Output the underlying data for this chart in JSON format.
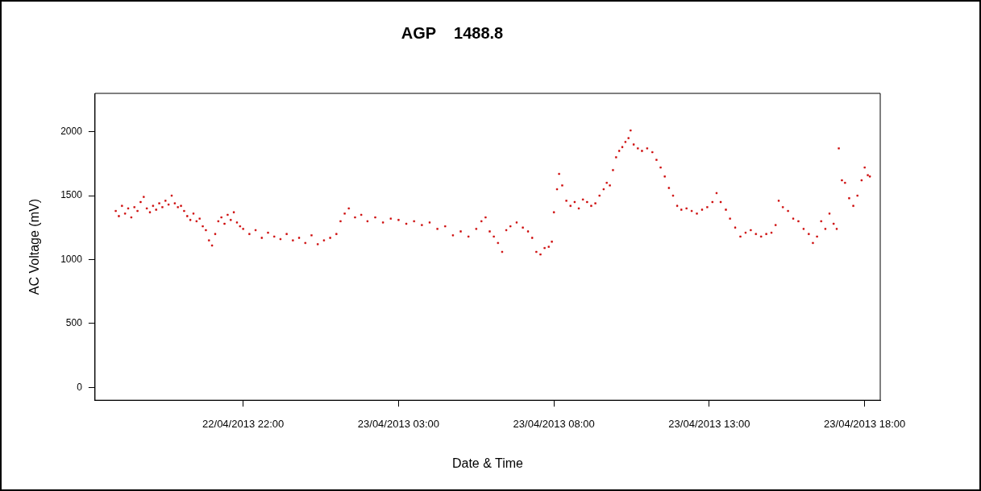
{
  "chart_data": {
    "type": "scatter",
    "title": "AGP    1488.8",
    "xlabel": "Date & Time",
    "ylabel": "AC Voltage (mV)",
    "xlim": [
      "2013-04-22T17:14",
      "2013-04-23T18:30"
    ],
    "xticks": [
      {
        "value": "2013-04-22T22:00",
        "label": "22/04/2013 22:00"
      },
      {
        "value": "2013-04-23T03:00",
        "label": "23/04/2013 03:00"
      },
      {
        "value": "2013-04-23T08:00",
        "label": "23/04/2013 08:00"
      },
      {
        "value": "2013-04-23T13:00",
        "label": "23/04/2013 13:00"
      },
      {
        "value": "2013-04-23T18:00",
        "label": "23/04/2013 18:00"
      }
    ],
    "ylim": [
      -100,
      2300
    ],
    "yticks": [
      0,
      500,
      1000,
      1500,
      2000
    ],
    "grid": false,
    "legend": false,
    "marker": "square",
    "series": [
      {
        "color": "#cc0000",
        "x": [
          "2013-04-22T17:54",
          "2013-04-22T18:00",
          "2013-04-22T18:06",
          "2013-04-22T18:12",
          "2013-04-22T18:18",
          "2013-04-22T18:24",
          "2013-04-22T18:30",
          "2013-04-22T18:36",
          "2013-04-22T18:42",
          "2013-04-22T18:48",
          "2013-04-22T18:54",
          "2013-04-22T19:00",
          "2013-04-22T19:06",
          "2013-04-22T19:12",
          "2013-04-22T19:18",
          "2013-04-22T19:24",
          "2013-04-22T19:30",
          "2013-04-22T19:36",
          "2013-04-22T19:42",
          "2013-04-22T19:48",
          "2013-04-22T19:54",
          "2013-04-22T20:00",
          "2013-04-22T20:06",
          "2013-04-22T20:12",
          "2013-04-22T20:18",
          "2013-04-22T20:24",
          "2013-04-22T20:30",
          "2013-04-22T20:36",
          "2013-04-22T20:42",
          "2013-04-22T20:48",
          "2013-04-22T20:54",
          "2013-04-22T21:00",
          "2013-04-22T21:06",
          "2013-04-22T21:12",
          "2013-04-22T21:18",
          "2013-04-22T21:24",
          "2013-04-22T21:30",
          "2013-04-22T21:36",
          "2013-04-22T21:42",
          "2013-04-22T21:48",
          "2013-04-22T21:54",
          "2013-04-22T22:00",
          "2013-04-22T22:12",
          "2013-04-22T22:24",
          "2013-04-22T22:36",
          "2013-04-22T22:48",
          "2013-04-22T23:00",
          "2013-04-22T23:12",
          "2013-04-22T23:24",
          "2013-04-22T23:36",
          "2013-04-22T23:48",
          "2013-04-23T00:00",
          "2013-04-23T00:12",
          "2013-04-23T00:24",
          "2013-04-23T00:36",
          "2013-04-23T00:48",
          "2013-04-23T01:00",
          "2013-04-23T01:08",
          "2013-04-23T01:16",
          "2013-04-23T01:24",
          "2013-04-23T01:36",
          "2013-04-23T01:48",
          "2013-04-23T02:00",
          "2013-04-23T02:15",
          "2013-04-23T02:30",
          "2013-04-23T02:45",
          "2013-04-23T03:00",
          "2013-04-23T03:15",
          "2013-04-23T03:30",
          "2013-04-23T03:45",
          "2013-04-23T04:00",
          "2013-04-23T04:15",
          "2013-04-23T04:30",
          "2013-04-23T04:45",
          "2013-04-23T05:00",
          "2013-04-23T05:15",
          "2013-04-23T05:30",
          "2013-04-23T05:40",
          "2013-04-23T05:48",
          "2013-04-23T05:56",
          "2013-04-23T06:04",
          "2013-04-23T06:12",
          "2013-04-23T06:20",
          "2013-04-23T06:28",
          "2013-04-23T06:36",
          "2013-04-23T06:48",
          "2013-04-23T07:00",
          "2013-04-23T07:10",
          "2013-04-23T07:18",
          "2013-04-23T07:26",
          "2013-04-23T07:34",
          "2013-04-23T07:42",
          "2013-04-23T07:50",
          "2013-04-23T07:56",
          "2013-04-23T08:00",
          "2013-04-23T08:06",
          "2013-04-23T08:10",
          "2013-04-23T08:16",
          "2013-04-23T08:24",
          "2013-04-23T08:32",
          "2013-04-23T08:40",
          "2013-04-23T08:48",
          "2013-04-23T08:56",
          "2013-04-23T09:04",
          "2013-04-23T09:12",
          "2013-04-23T09:20",
          "2013-04-23T09:28",
          "2013-04-23T09:36",
          "2013-04-23T09:42",
          "2013-04-23T09:48",
          "2013-04-23T09:54",
          "2013-04-23T10:00",
          "2013-04-23T10:06",
          "2013-04-23T10:12",
          "2013-04-23T10:18",
          "2013-04-23T10:24",
          "2013-04-23T10:28",
          "2013-04-23T10:34",
          "2013-04-23T10:42",
          "2013-04-23T10:50",
          "2013-04-23T11:00",
          "2013-04-23T11:10",
          "2013-04-23T11:18",
          "2013-04-23T11:26",
          "2013-04-23T11:34",
          "2013-04-23T11:42",
          "2013-04-23T11:50",
          "2013-04-23T11:58",
          "2013-04-23T12:06",
          "2013-04-23T12:16",
          "2013-04-23T12:26",
          "2013-04-23T12:36",
          "2013-04-23T12:46",
          "2013-04-23T12:56",
          "2013-04-23T13:06",
          "2013-04-23T13:14",
          "2013-04-23T13:22",
          "2013-04-23T13:32",
          "2013-04-23T13:40",
          "2013-04-23T13:50",
          "2013-04-23T14:00",
          "2013-04-23T14:10",
          "2013-04-23T14:20",
          "2013-04-23T14:30",
          "2013-04-23T14:40",
          "2013-04-23T14:50",
          "2013-04-23T15:00",
          "2013-04-23T15:08",
          "2013-04-23T15:14",
          "2013-04-23T15:22",
          "2013-04-23T15:32",
          "2013-04-23T15:42",
          "2013-04-23T15:52",
          "2013-04-23T16:02",
          "2013-04-23T16:12",
          "2013-04-23T16:20",
          "2013-04-23T16:28",
          "2013-04-23T16:36",
          "2013-04-23T16:44",
          "2013-04-23T16:52",
          "2013-04-23T17:00",
          "2013-04-23T17:06",
          "2013-04-23T17:10",
          "2013-04-23T17:16",
          "2013-04-23T17:22",
          "2013-04-23T17:30",
          "2013-04-23T17:38",
          "2013-04-23T17:46",
          "2013-04-23T17:54",
          "2013-04-23T18:00",
          "2013-04-23T18:06",
          "2013-04-23T18:10"
        ],
        "values": [
          1380,
          1340,
          1420,
          1360,
          1400,
          1330,
          1410,
          1380,
          1450,
          1490,
          1400,
          1370,
          1420,
          1390,
          1440,
          1410,
          1460,
          1430,
          1500,
          1440,
          1410,
          1420,
          1380,
          1340,
          1310,
          1360,
          1300,
          1320,
          1260,
          1230,
          1150,
          1110,
          1200,
          1300,
          1330,
          1280,
          1350,
          1310,
          1370,
          1290,
          1260,
          1240,
          1200,
          1230,
          1170,
          1210,
          1180,
          1160,
          1200,
          1150,
          1170,
          1130,
          1190,
          1120,
          1150,
          1170,
          1200,
          1300,
          1360,
          1400,
          1330,
          1350,
          1300,
          1330,
          1290,
          1320,
          1310,
          1280,
          1300,
          1270,
          1290,
          1240,
          1260,
          1190,
          1220,
          1180,
          1240,
          1300,
          1330,
          1220,
          1180,
          1130,
          1060,
          1230,
          1260,
          1290,
          1250,
          1220,
          1170,
          1060,
          1040,
          1090,
          1100,
          1140,
          1370,
          1550,
          1670,
          1580,
          1460,
          1420,
          1450,
          1400,
          1470,
          1450,
          1420,
          1440,
          1500,
          1550,
          1600,
          1580,
          1700,
          1800,
          1850,
          1880,
          1920,
          1950,
          2010,
          1900,
          1870,
          1850,
          1870,
          1840,
          1780,
          1720,
          1650,
          1560,
          1500,
          1420,
          1390,
          1400,
          1380,
          1360,
          1390,
          1410,
          1450,
          1520,
          1450,
          1390,
          1320,
          1250,
          1180,
          1210,
          1230,
          1200,
          1180,
          1200,
          1210,
          1270,
          1460,
          1410,
          1380,
          1320,
          1300,
          1240,
          1200,
          1130,
          1180,
          1300,
          1240,
          1360,
          1280,
          1240,
          1870,
          1620,
          1600,
          1480,
          1420,
          1500,
          1620,
          1720,
          1660,
          1650
        ]
      }
    ]
  }
}
